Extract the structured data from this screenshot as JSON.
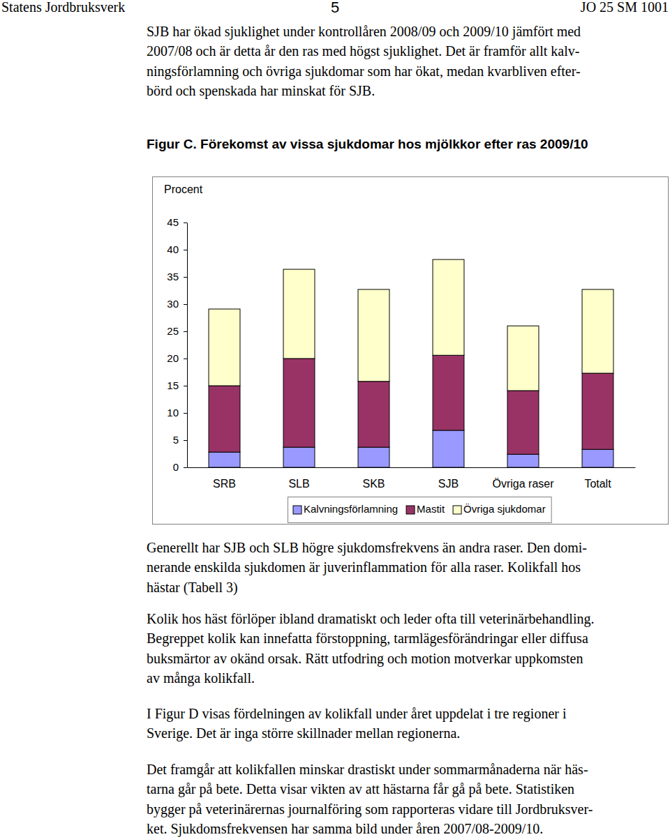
{
  "header": {
    "left": "Statens Jordbruksverk",
    "page": "5",
    "right": "JO 25 SM 1001"
  },
  "paragraphs_before": [
    [
      "SJB har ökad sjuklighet under kontrollåren 2008/09 och 2009/10 jämfört med",
      "2007/08 och är detta år den ras med högst sjuklighet. Det är framför allt kalv-",
      "ningsförlamning och övriga sjukdomar som har ökat, medan kvarbliven efter-",
      "börd och spenskada har minskat för SJB."
    ]
  ],
  "chart_data": {
    "type": "bar",
    "stacked": true,
    "title": "Figur C. Förekomst av vissa sjukdomar hos mjölkkor efter ras 2009/10",
    "y_label": "Procent",
    "categories": [
      "SRB",
      "SLB",
      "SKB",
      "SJB",
      "Övriga raser",
      "Totalt"
    ],
    "series": [
      {
        "name": "Kalvningsförlamning",
        "color": "#9999ff",
        "values": [
          2.8,
          3.7,
          3.7,
          6.8,
          2.4,
          3.3
        ]
      },
      {
        "name": "Mastit",
        "color": "#993366",
        "values": [
          12.2,
          16.3,
          12.1,
          13.8,
          11.7,
          14.0
        ]
      },
      {
        "name": "Övriga sjukdomar",
        "color": "#ffffcc",
        "values": [
          14.1,
          16.4,
          16.9,
          17.6,
          11.9,
          15.4
        ]
      }
    ],
    "ylim": [
      0,
      45
    ],
    "yticks": [
      0,
      5,
      10,
      15,
      20,
      25,
      30,
      35,
      40,
      45
    ],
    "grid": false,
    "legend": "bottom"
  },
  "paragraphs_after": [
    [
      "Generellt har SJB och SLB högre sjukdomsfrekvens än andra raser. Den domi-",
      "nerande enskilda sjukdomen är juverinflammation för alla raser. Kolikfall hos",
      "hästar (Tabell 3)"
    ],
    [
      "Kolik hos häst förlöper ibland dramatiskt och leder ofta till veterinärbehandling.",
      "Begreppet kolik kan innefatta förstoppning, tarmlägesförändringar eller diffusa",
      "buksmärtor av okänd orsak. Rätt utfodring och motion motverkar uppkomsten",
      "av många kolikfall."
    ],
    [
      "I Figur D visas fördelningen av kolikfall under året uppdelat i tre regioner i",
      "Sverige. Det är inga större skillnader mellan regionerna."
    ],
    [
      "Det framgår att kolikfallen minskar drastiskt under sommarmånaderna när häs-",
      "tarna går på bete. Detta visar vikten av att hästarna får gå på bete. Statistiken",
      "bygger på veterinärernas journalföring som rapporteras vidare till Jordbruksver-",
      "ket. Sjukdomsfrekvensen har samma bild under åren 2007/08-2009/10."
    ]
  ]
}
